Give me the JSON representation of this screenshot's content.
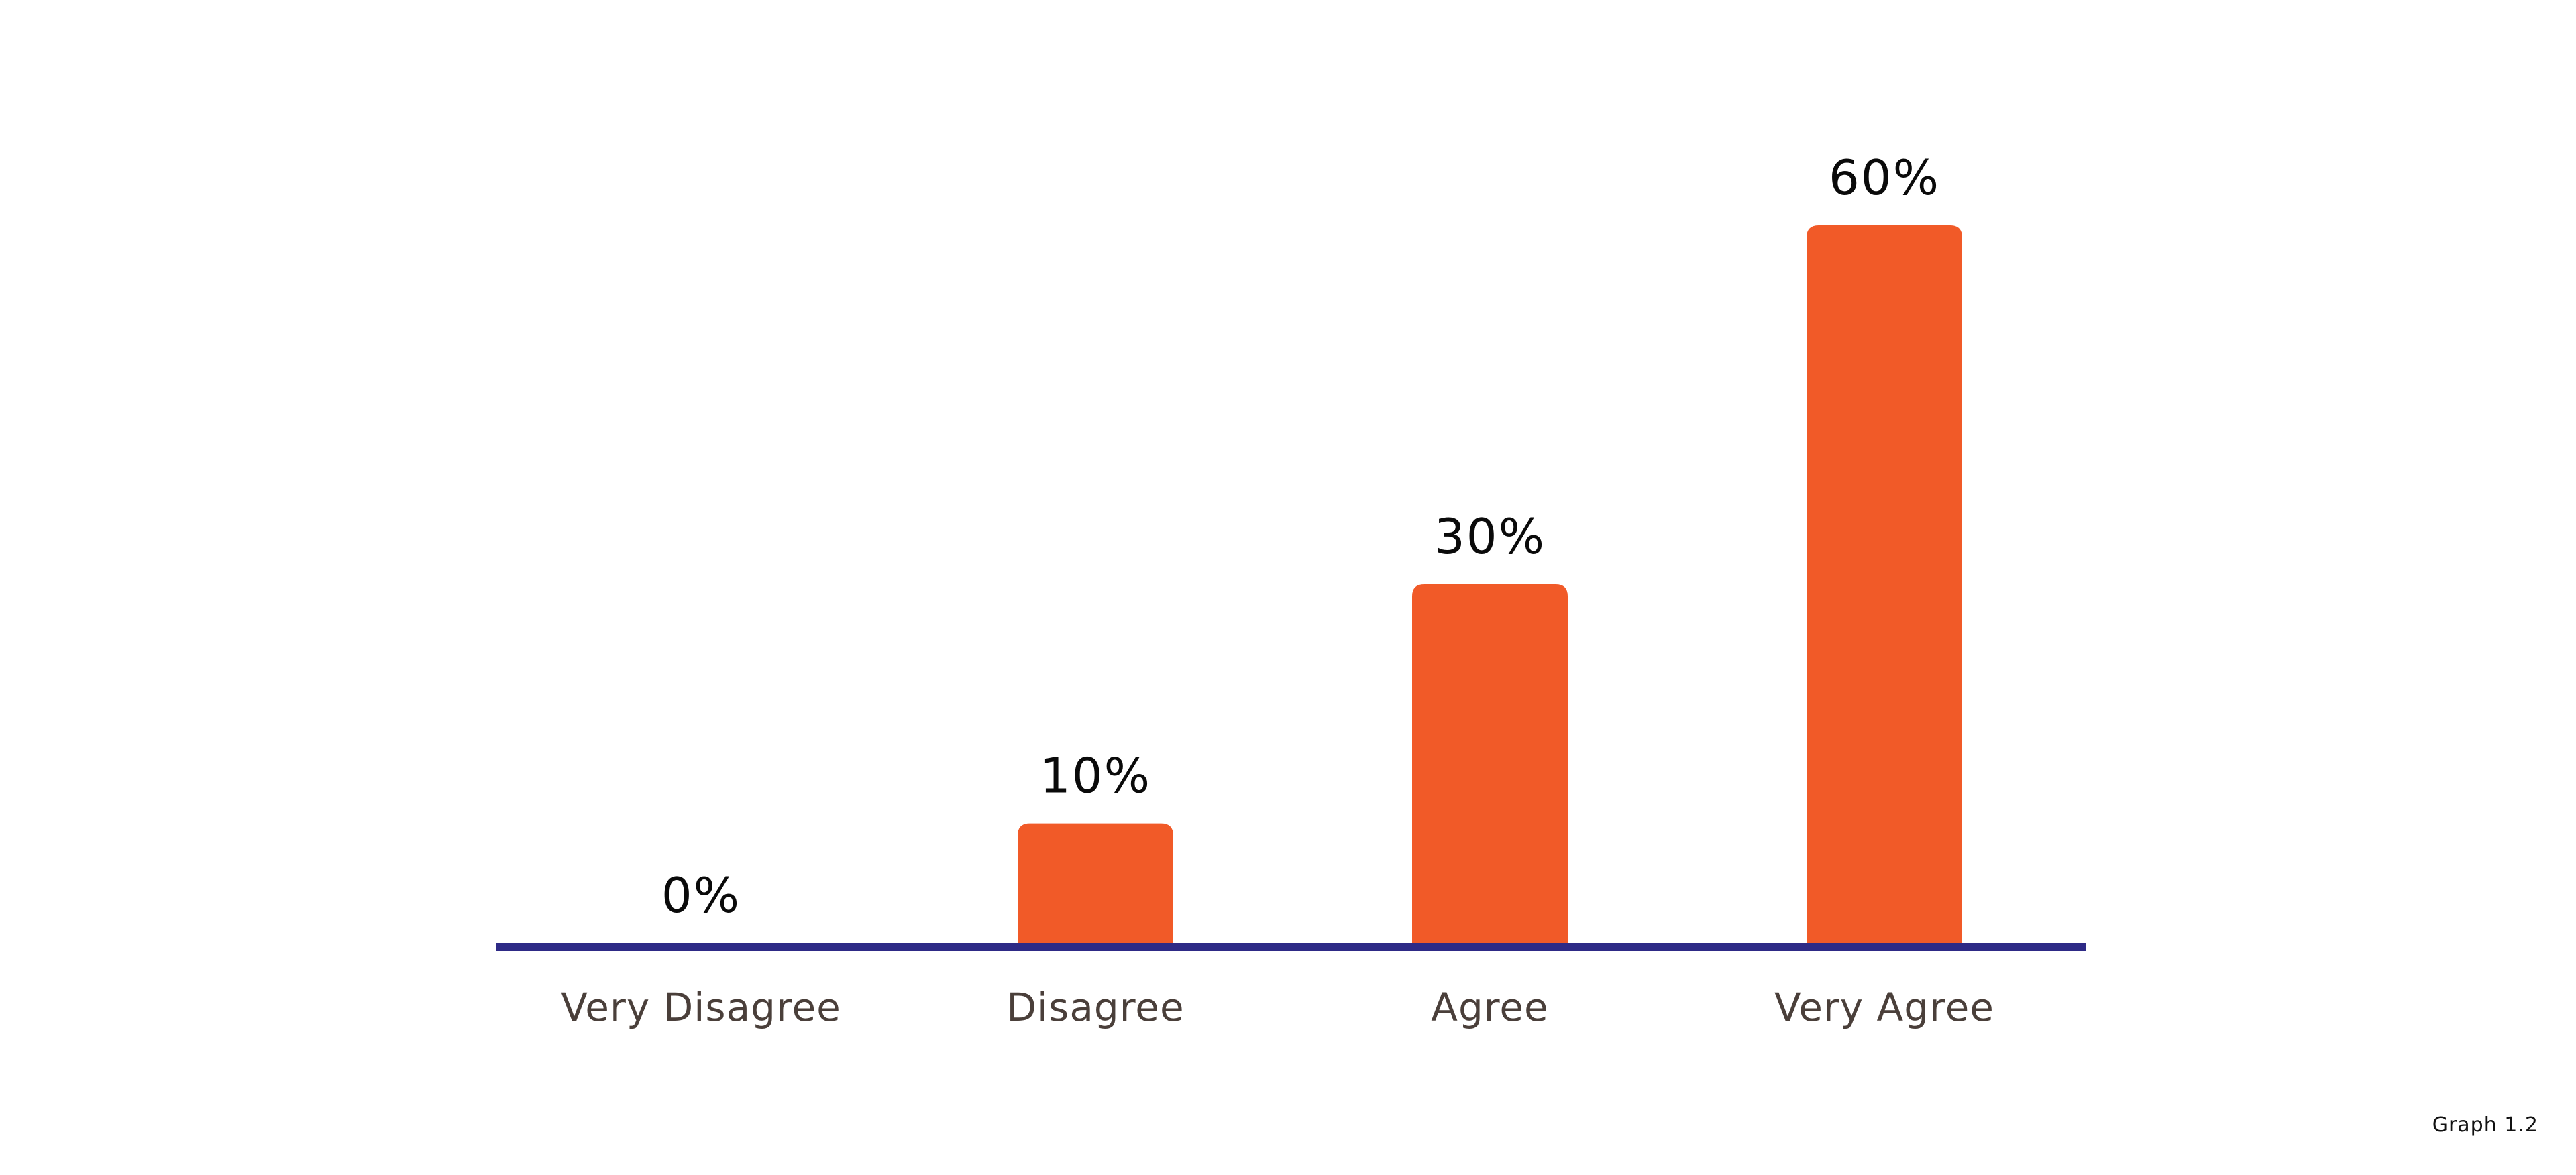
{
  "footnote": "Graph 1.2",
  "colors": {
    "bar": "#f15a28",
    "baseline": "#2e2a86",
    "value_text": "#0a0a0a",
    "category_text": "#4a3f3a"
  },
  "chart_data": {
    "type": "bar",
    "categories": [
      "Very Disagree",
      "Disagree",
      "Agree",
      "Very Agree"
    ],
    "values": [
      0,
      10,
      30,
      60
    ],
    "value_labels": [
      "0%",
      "10%",
      "30%",
      "60%"
    ],
    "ylim": [
      0,
      60
    ],
    "grid": false,
    "legend": "none"
  }
}
